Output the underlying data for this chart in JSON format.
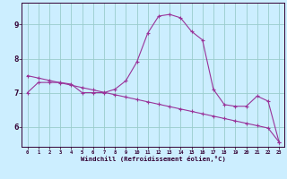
{
  "xlabel": "Windchill (Refroidissement éolien,°C)",
  "x_hours": [
    0,
    1,
    2,
    3,
    4,
    5,
    6,
    7,
    8,
    9,
    10,
    11,
    12,
    13,
    14,
    15,
    16,
    17,
    18,
    19,
    20,
    21,
    22,
    23
  ],
  "y_curve": [
    7.0,
    7.3,
    7.3,
    7.3,
    7.25,
    7.0,
    7.0,
    7.0,
    7.1,
    7.35,
    7.9,
    8.75,
    9.25,
    9.3,
    9.2,
    8.8,
    8.55,
    7.1,
    6.65,
    6.6,
    6.6,
    6.9,
    6.75,
    5.55
  ],
  "y_trend": [
    7.5,
    7.43,
    7.36,
    7.29,
    7.22,
    7.15,
    7.08,
    7.01,
    6.94,
    6.87,
    6.8,
    6.73,
    6.66,
    6.59,
    6.52,
    6.45,
    6.38,
    6.31,
    6.24,
    6.17,
    6.1,
    6.03,
    5.96,
    5.55
  ],
  "bg_color": "#cceeff",
  "line_color": "#993399",
  "grid_color": "#99cccc",
  "ylim": [
    5.4,
    9.65
  ],
  "xlim": [
    -0.5,
    23.5
  ],
  "yticks": [
    6,
    7,
    8,
    9
  ],
  "xtick_labels": [
    "0",
    "1",
    "2",
    "3",
    "4",
    "5",
    "6",
    "7",
    "8",
    "9",
    "10",
    "11",
    "12",
    "13",
    "14",
    "15",
    "16",
    "17",
    "18",
    "19",
    "20",
    "21",
    "22",
    "23"
  ]
}
